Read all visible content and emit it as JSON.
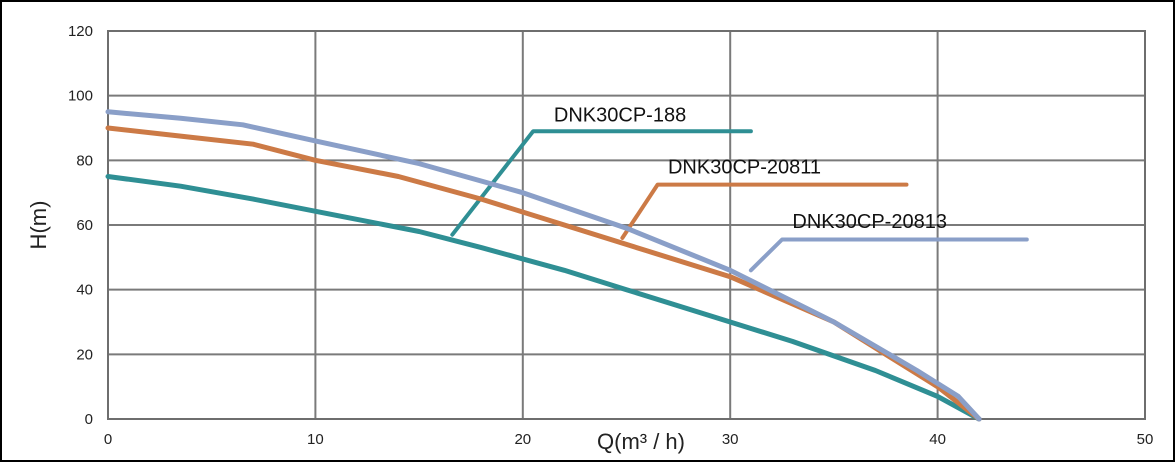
{
  "chart_data": {
    "type": "line",
    "xlabel": "Q(m³ / h)",
    "ylabel": "H(m)",
    "xlim": [
      0,
      50
    ],
    "ylim": [
      0,
      120
    ],
    "xticks": [
      0,
      10,
      20,
      30,
      40,
      50
    ],
    "yticks": [
      0,
      20,
      40,
      60,
      80,
      100,
      120
    ],
    "grid": true,
    "series": [
      {
        "name": "DNK30CP-188",
        "color": "#2f8f94",
        "x": [
          0,
          3.5,
          7,
          11,
          15,
          18,
          22,
          25,
          30,
          33,
          37,
          40,
          42
        ],
        "y": [
          75,
          72,
          68,
          63,
          58,
          53,
          46,
          40,
          30,
          24,
          15,
          7,
          0
        ],
        "label_line": [
          [
            16.6,
            57
          ],
          [
            20.5,
            89
          ],
          [
            31,
            89
          ]
        ],
        "label_anchor": [
          21.5,
          92
        ]
      },
      {
        "name": "DNK30CP-20811",
        "color": "#cc7a46",
        "x": [
          0,
          3.5,
          7,
          10,
          14,
          18,
          22,
          26,
          30,
          35,
          40,
          42
        ],
        "y": [
          90,
          87.5,
          85,
          80,
          75,
          68,
          60,
          52,
          44,
          30,
          10,
          0
        ],
        "label_line": [
          [
            24.8,
            56
          ],
          [
            26.5,
            72.5
          ],
          [
            38.5,
            72.5
          ]
        ],
        "label_anchor": [
          27,
          76
        ]
      },
      {
        "name": "DNK30CP-20813",
        "color": "#8a9fc8",
        "x": [
          0,
          3.5,
          6.5,
          10,
          15,
          20,
          25,
          30,
          35,
          39,
          41,
          42
        ],
        "y": [
          95,
          93,
          91,
          86,
          79,
          70,
          59,
          46,
          30,
          15,
          7,
          0
        ],
        "label_line": [
          [
            31,
            46
          ],
          [
            32.5,
            55.5
          ],
          [
            44.3,
            55.5
          ]
        ],
        "label_anchor": [
          33,
          59
        ]
      }
    ]
  }
}
